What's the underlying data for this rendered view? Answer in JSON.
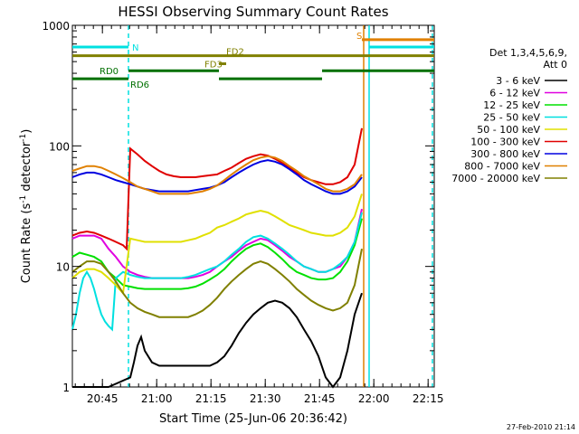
{
  "chart_data": {
    "type": "line",
    "title": "HESSI Observing Summary Count Rates",
    "xlabel": "Start Time (25-Jun-06 20:36:42)",
    "ylabel_main": "Count Rate (s",
    "ylabel_sup1": "-1",
    "ylabel_mid": " detector",
    "ylabel_sup2": "-1",
    "ylabel_end": ")",
    "x_unit": "minutes after 20:36:42",
    "x_range": [
      0,
      100
    ],
    "y_scale": "log",
    "ylim": [
      1,
      1000
    ],
    "y_ticks": [
      {
        "value": 1,
        "label": "1"
      },
      {
        "value": 10,
        "label": "10"
      },
      {
        "value": 100,
        "label": "100"
      },
      {
        "value": 1000,
        "label": "1000"
      }
    ],
    "x_ticks": [
      {
        "value": 8.3,
        "label": "20:45"
      },
      {
        "value": 23.3,
        "label": "21:00"
      },
      {
        "value": 38.3,
        "label": "21:15"
      },
      {
        "value": 53.3,
        "label": "21:30"
      },
      {
        "value": 68.3,
        "label": "21:45"
      },
      {
        "value": 83.3,
        "label": "22:00"
      },
      {
        "value": 98.3,
        "label": "22:15"
      }
    ],
    "legend_header": [
      "Det 1,3,4,5,6,9,",
      "Att 0"
    ],
    "legend_position": "right",
    "series": [
      {
        "name": "3 - 6 keV",
        "color": "#000000",
        "x": [
          0,
          10,
          16,
          17,
          18,
          19,
          20,
          22,
          24,
          26,
          28,
          30,
          32,
          34,
          36,
          38,
          40,
          42,
          44,
          46,
          48,
          50,
          52,
          54,
          56,
          58,
          60,
          62,
          64,
          66,
          68,
          70,
          72,
          74,
          76,
          78,
          80
        ],
        "y": [
          1,
          1,
          1.2,
          1.6,
          2.2,
          2.6,
          2.0,
          1.6,
          1.5,
          1.5,
          1.5,
          1.5,
          1.5,
          1.5,
          1.5,
          1.5,
          1.6,
          1.8,
          2.2,
          2.8,
          3.4,
          4.0,
          4.5,
          5.0,
          5.2,
          5.0,
          4.5,
          3.8,
          3.0,
          2.4,
          1.8,
          1.2,
          1.0,
          1.2,
          2.0,
          4.0,
          6.0
        ]
      },
      {
        "name": "6 - 12 keV",
        "color": "#e000e0",
        "x": [
          0,
          2,
          4,
          6,
          8,
          10,
          12,
          14,
          16,
          18,
          20,
          22,
          24,
          26,
          28,
          30,
          32,
          34,
          36,
          38,
          40,
          42,
          44,
          46,
          48,
          50,
          52,
          54,
          56,
          58,
          60,
          62,
          64,
          66,
          68,
          70,
          72,
          74,
          76,
          78,
          80
        ],
        "y": [
          17,
          18,
          18,
          18,
          17,
          14,
          12,
          10,
          9,
          8.5,
          8.2,
          8.0,
          8.0,
          8.0,
          8.0,
          8.0,
          8.0,
          8.2,
          8.5,
          9,
          10,
          11,
          12,
          13.5,
          15,
          16,
          17,
          16.5,
          15,
          13.5,
          12,
          11,
          10,
          9.5,
          9,
          9,
          9.5,
          10,
          12,
          16,
          30
        ]
      },
      {
        "name": "12 - 25 keV",
        "color": "#00e000",
        "x": [
          0,
          2,
          4,
          6,
          8,
          10,
          12,
          14,
          16,
          18,
          20,
          22,
          24,
          26,
          28,
          30,
          32,
          34,
          36,
          38,
          40,
          42,
          44,
          46,
          48,
          50,
          52,
          54,
          56,
          58,
          60,
          62,
          64,
          66,
          68,
          70,
          72,
          74,
          76,
          78,
          80
        ],
        "y": [
          12,
          13,
          12.5,
          12,
          11,
          9,
          8,
          7,
          6.8,
          6.6,
          6.5,
          6.5,
          6.5,
          6.5,
          6.5,
          6.5,
          6.6,
          6.8,
          7.2,
          7.8,
          8.5,
          9.5,
          11,
          12.5,
          14,
          15,
          15.5,
          14.5,
          13,
          11.5,
          10,
          9,
          8.5,
          8,
          7.8,
          7.8,
          8,
          9,
          11,
          15,
          25
        ]
      },
      {
        "name": "25 - 50 keV",
        "color": "#00e0e0",
        "x": [
          0,
          1,
          2,
          3,
          4,
          5,
          6,
          7,
          8,
          9,
          10,
          11,
          12,
          14,
          16,
          18,
          20,
          22,
          24,
          26,
          28,
          30,
          32,
          34,
          36,
          38,
          40,
          42,
          44,
          46,
          48,
          50,
          52,
          54,
          56,
          58,
          60,
          62,
          64,
          66,
          68,
          70,
          72,
          74,
          76,
          78,
          80
        ],
        "y": [
          3,
          4,
          6,
          8,
          9,
          8,
          6.5,
          5,
          4,
          3.5,
          3.2,
          3.0,
          8,
          9,
          8.5,
          8.2,
          8.0,
          8.0,
          8.0,
          8.0,
          8.0,
          8.0,
          8.2,
          8.5,
          9,
          9.5,
          10,
          11,
          12.5,
          14,
          16,
          17.5,
          18,
          17,
          15.5,
          14,
          12.5,
          11,
          10,
          9.5,
          9,
          9,
          9.5,
          10.5,
          12,
          16,
          28
        ]
      },
      {
        "name": "50 - 100 keV",
        "color": "#e0e000",
        "x": [
          0,
          2,
          4,
          6,
          8,
          10,
          12,
          14,
          16,
          18,
          20,
          22,
          24,
          26,
          28,
          30,
          32,
          34,
          36,
          38,
          40,
          42,
          44,
          46,
          48,
          50,
          52,
          54,
          56,
          58,
          60,
          62,
          64,
          66,
          68,
          70,
          72,
          74,
          76,
          78,
          80
        ],
        "y": [
          8,
          9,
          9.5,
          9.5,
          9,
          8,
          7,
          6,
          17,
          16.5,
          16,
          16,
          16,
          16,
          16,
          16,
          16.5,
          17,
          18,
          19,
          21,
          22,
          23.5,
          25,
          27,
          28,
          29,
          28,
          26,
          24,
          22,
          21,
          20,
          19,
          18.5,
          18,
          18,
          19,
          21,
          26,
          40
        ]
      },
      {
        "name": "100 - 300 keV",
        "color": "#e00000",
        "x": [
          0,
          2,
          4,
          6,
          8,
          10,
          12,
          14,
          15,
          16,
          18,
          20,
          22,
          24,
          26,
          28,
          30,
          32,
          34,
          36,
          38,
          40,
          42,
          44,
          46,
          48,
          50,
          52,
          54,
          56,
          58,
          60,
          62,
          64,
          66,
          68,
          70,
          72,
          74,
          76,
          78,
          80
        ],
        "y": [
          18,
          19,
          19.5,
          19,
          18,
          17,
          16,
          15,
          14,
          95,
          85,
          75,
          68,
          62,
          58,
          56,
          55,
          55,
          55,
          56,
          57,
          58,
          62,
          66,
          72,
          78,
          82,
          85,
          83,
          78,
          72,
          66,
          60,
          55,
          52,
          50,
          48,
          48,
          50,
          55,
          70,
          140
        ]
      },
      {
        "name": "300 - 800 keV",
        "color": "#0000e0",
        "x": [
          0,
          2,
          4,
          6,
          8,
          10,
          12,
          14,
          16,
          18,
          20,
          22,
          24,
          26,
          28,
          30,
          32,
          34,
          36,
          38,
          40,
          42,
          44,
          46,
          48,
          50,
          52,
          54,
          56,
          58,
          60,
          62,
          64,
          66,
          68,
          70,
          72,
          74,
          76,
          78,
          80
        ],
        "y": [
          55,
          58,
          60,
          60,
          58,
          55,
          52,
          50,
          48,
          46,
          44,
          43,
          42,
          42,
          42,
          42,
          42,
          43,
          44,
          45,
          47,
          50,
          55,
          60,
          65,
          70,
          74,
          76,
          74,
          70,
          64,
          58,
          52,
          48,
          45,
          42,
          40,
          40,
          42,
          46,
          55
        ]
      },
      {
        "name": "800 - 7000 keV",
        "color": "#e08000",
        "x": [
          0,
          2,
          4,
          6,
          8,
          10,
          12,
          14,
          16,
          18,
          20,
          22,
          24,
          26,
          28,
          30,
          32,
          34,
          36,
          38,
          40,
          42,
          44,
          46,
          48,
          50,
          52,
          54,
          56,
          58,
          60,
          62,
          64,
          66,
          68,
          70,
          72,
          74,
          76,
          78,
          80
        ],
        "y": [
          62,
          65,
          68,
          68,
          66,
          62,
          58,
          54,
          50,
          46,
          44,
          42,
          40,
          40,
          40,
          40,
          40,
          41,
          42,
          44,
          47,
          52,
          58,
          64,
          70,
          76,
          80,
          82,
          80,
          75,
          68,
          62,
          56,
          52,
          48,
          44,
          42,
          42,
          44,
          48,
          58
        ]
      },
      {
        "name": "7000 - 20000 keV",
        "color": "#808000",
        "x": [
          0,
          2,
          4,
          6,
          8,
          10,
          12,
          14,
          16,
          18,
          20,
          22,
          24,
          26,
          28,
          30,
          32,
          34,
          36,
          38,
          40,
          42,
          44,
          46,
          48,
          50,
          52,
          54,
          56,
          58,
          60,
          62,
          64,
          66,
          68,
          70,
          72,
          74,
          76,
          78,
          80
        ],
        "y": [
          9,
          10,
          11,
          11,
          10.5,
          9,
          7.5,
          6,
          5,
          4.5,
          4.2,
          4.0,
          3.8,
          3.8,
          3.8,
          3.8,
          3.8,
          4.0,
          4.3,
          4.8,
          5.5,
          6.5,
          7.5,
          8.5,
          9.5,
          10.5,
          11,
          10.5,
          9.5,
          8.5,
          7.5,
          6.5,
          5.8,
          5.2,
          4.8,
          4.5,
          4.3,
          4.5,
          5,
          7,
          14
        ]
      }
    ],
    "flag_bars": [
      {
        "label": "N",
        "color": "#00e0e0",
        "level": 660,
        "segments": [
          [
            0,
            15.5
          ],
          [
            82,
            100
          ]
        ]
      },
      {
        "label": "S",
        "color": "#e08000",
        "level": 760,
        "segments": [
          [
            80,
            100
          ]
        ]
      },
      {
        "label": "FD2",
        "color": "#808000",
        "level": 560,
        "segments": [
          [
            0,
            100
          ]
        ]
      },
      {
        "label": "FD3",
        "color": "#808000",
        "level": 480,
        "segments": [
          [
            40.5,
            42.5
          ]
        ]
      },
      {
        "label": "RD0",
        "color": "#007000",
        "level": 420,
        "segments": [
          [
            15.5,
            40.5
          ],
          [
            69,
            100
          ]
        ]
      },
      {
        "label": "RD6",
        "color": "#007000",
        "level": 360,
        "segments": [
          [
            0,
            15.5
          ],
          [
            40.5,
            69
          ]
        ]
      }
    ],
    "vertical_markers": [
      {
        "x": 15.5,
        "color": "#00e0e0",
        "style": "dashed"
      },
      {
        "x": 80.5,
        "color": "#e08000",
        "style": "solid"
      },
      {
        "x": 82,
        "color": "#00e0e0",
        "style": "solid"
      },
      {
        "x": 99.5,
        "color": "#00e0e0",
        "style": "dashed"
      }
    ],
    "timestamp": "27-Feb-2010 21:14"
  }
}
